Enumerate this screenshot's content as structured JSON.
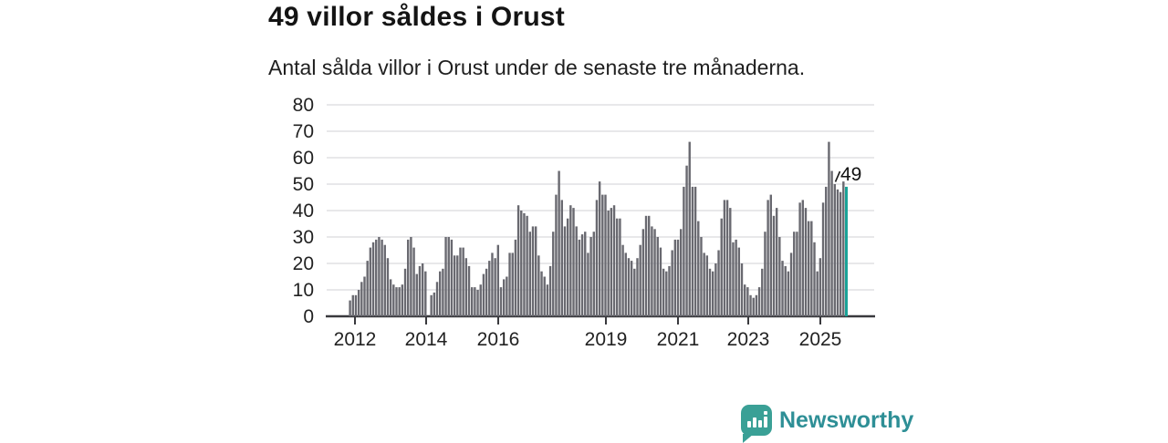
{
  "header": {
    "title": "49 villor såldes i Orust",
    "subtitle": "Antal sålda villor i Orust under de senaste tre månaderna."
  },
  "chart_data": {
    "type": "bar",
    "title": "49 villor såldes i Orust",
    "subtitle": "Antal sålda villor i Orust under de senaste tre månaderna.",
    "period": "monthly rolling 3-month totals, ~2012 to late 2025",
    "x_tick_labels": [
      "2012",
      "2014",
      "2016",
      "2019",
      "2021",
      "2023",
      "2025"
    ],
    "y_ticks": [
      0,
      10,
      20,
      30,
      40,
      50,
      60,
      70,
      80
    ],
    "ylim": [
      0,
      80
    ],
    "grid": true,
    "legend": "none",
    "values": [
      6,
      8,
      8,
      10,
      13,
      15,
      21,
      26,
      28,
      29,
      30,
      29,
      27,
      22,
      14,
      12,
      11,
      11,
      12,
      18,
      29,
      30,
      26,
      16,
      19,
      20,
      17,
      0,
      8,
      9,
      13,
      17,
      18,
      30,
      30,
      29,
      23,
      23,
      26,
      26,
      22,
      19,
      11,
      11,
      10,
      12,
      16,
      18,
      21,
      24,
      22,
      27,
      11,
      14,
      15,
      24,
      24,
      29,
      42,
      40,
      39,
      38,
      32,
      34,
      34,
      23,
      17,
      15,
      12,
      19,
      32,
      46,
      55,
      44,
      34,
      37,
      42,
      41,
      34,
      29,
      31,
      32,
      24,
      30,
      32,
      44,
      51,
      46,
      46,
      40,
      41,
      42,
      37,
      37,
      27,
      24,
      22,
      21,
      18,
      22,
      27,
      33,
      38,
      38,
      34,
      33,
      30,
      26,
      18,
      17,
      19,
      25,
      29,
      29,
      33,
      49,
      57,
      66,
      49,
      49,
      36,
      30,
      24,
      23,
      18,
      17,
      20,
      25,
      37,
      44,
      44,
      41,
      28,
      29,
      26,
      20,
      12,
      11,
      8,
      7,
      8,
      11,
      18,
      32,
      44,
      46,
      38,
      41,
      30,
      21,
      19,
      17,
      24,
      32,
      32,
      43,
      44,
      41,
      36,
      36,
      28,
      17,
      22,
      43,
      49,
      66,
      55,
      50,
      48,
      47,
      51,
      49
    ],
    "highlight": {
      "index": 171,
      "value": 49,
      "label": "49",
      "color": "#1aa398"
    },
    "bar_color": "#696970",
    "grid_color": "#dadade",
    "axis_color": "#39393d",
    "tick_label_color": "#222222"
  },
  "branding": {
    "logo_text": "Newsworthy",
    "logo_text_color": "#2e8f96",
    "icon": "newsworthy-speech-bubble-bar-chart-icon",
    "icon_color": "#3aa096"
  }
}
